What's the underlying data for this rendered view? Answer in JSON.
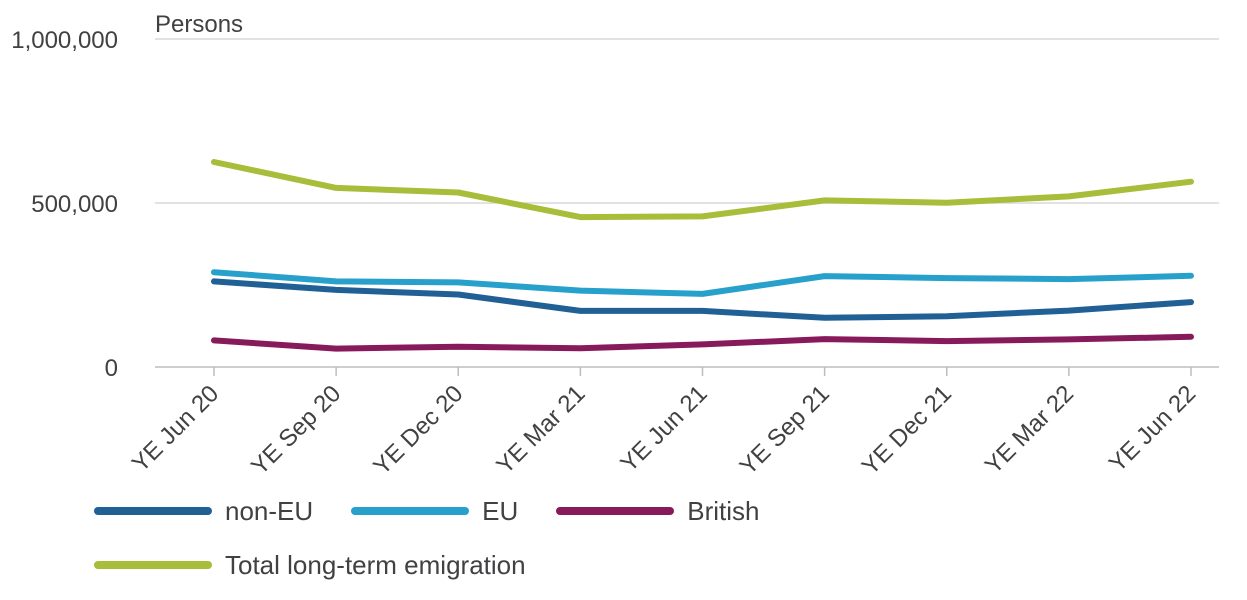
{
  "chart_data": {
    "type": "line",
    "ylabel": "Persons",
    "ylim": [
      0,
      1000000
    ],
    "yticks": [
      0,
      500000,
      1000000
    ],
    "ytick_labels": [
      "0",
      "500,000",
      "1,000,000"
    ],
    "categories": [
      "YE Jun 20",
      "YE Sep 20",
      "YE Dec 20",
      "YE Mar 21",
      "YE Jun 21",
      "YE Sep 21",
      "YE Dec 21",
      "YE Mar 22",
      "YE Jun 22"
    ],
    "grid": true,
    "legend_position": "bottom",
    "series": [
      {
        "name": "non-EU",
        "color": "#206095",
        "values": [
          261000,
          235000,
          221000,
          171000,
          171000,
          150000,
          155000,
          172000,
          198000
        ]
      },
      {
        "name": "EU",
        "color": "#27a0cc",
        "values": [
          289000,
          261000,
          258000,
          233000,
          223000,
          277000,
          271000,
          268000,
          278000
        ]
      },
      {
        "name": "British",
        "color": "#871a5b",
        "values": [
          81000,
          56000,
          62000,
          57000,
          69000,
          85000,
          79000,
          84000,
          92000
        ]
      },
      {
        "name": "Total long-term emigration",
        "color": "#a8bd3a",
        "values": [
          625000,
          546000,
          532000,
          457000,
          459000,
          508000,
          501000,
          520000,
          565000
        ]
      }
    ]
  }
}
